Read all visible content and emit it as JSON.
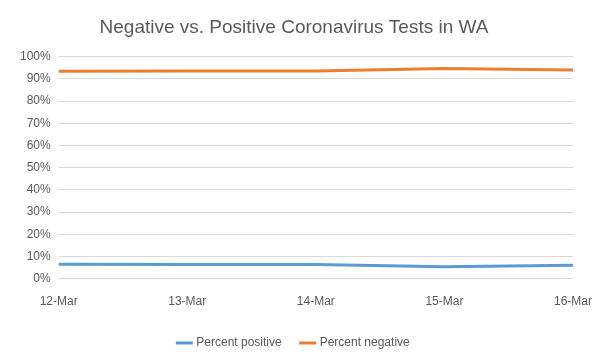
{
  "chart_data": {
    "type": "line",
    "title": "Negative vs. Positive Coronavirus Tests in WA",
    "categories": [
      "12-Mar",
      "13-Mar",
      "14-Mar",
      "15-Mar",
      "16-Mar"
    ],
    "series": [
      {
        "name": "Percent positive",
        "color": "#5b9bd5",
        "values": [
          6.5,
          6.4,
          6.4,
          5.3,
          6.0
        ]
      },
      {
        "name": "Percent negative",
        "color": "#ed7d31",
        "values": [
          93.5,
          93.6,
          93.6,
          94.7,
          94.0
        ]
      }
    ],
    "ylim": [
      0,
      100
    ],
    "yticks": [
      {
        "value": 0,
        "label": "0%"
      },
      {
        "value": 10,
        "label": "10%"
      },
      {
        "value": 20,
        "label": "20%"
      },
      {
        "value": 30,
        "label": "30%"
      },
      {
        "value": 40,
        "label": "40%"
      },
      {
        "value": 50,
        "label": "50%"
      },
      {
        "value": 60,
        "label": "60%"
      },
      {
        "value": 70,
        "label": "70%"
      },
      {
        "value": 80,
        "label": "80%"
      },
      {
        "value": 90,
        "label": "90%"
      },
      {
        "value": 100,
        "label": "100%"
      }
    ],
    "grid": true,
    "legend": "bottom"
  }
}
